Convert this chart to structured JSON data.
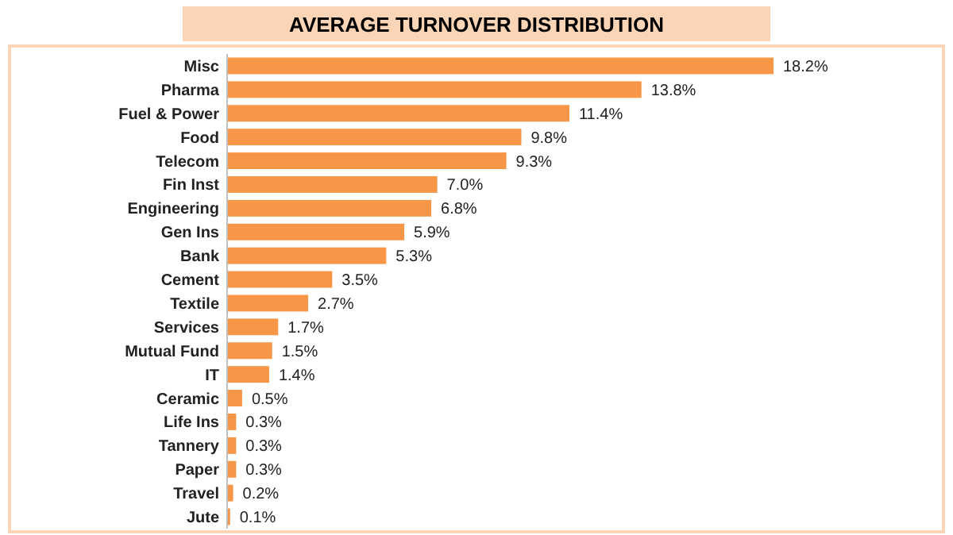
{
  "chart_data": {
    "type": "bar",
    "orientation": "horizontal",
    "title": "AVERAGE TURNOVER DISTRIBUTION",
    "categories": [
      "Misc",
      "Pharma",
      "Fuel & Power",
      "Food",
      "Telecom",
      "Fin Inst",
      "Engineering",
      "Gen Ins",
      "Bank",
      "Cement",
      "Textile",
      "Services",
      "Mutual Fund",
      "IT",
      "Ceramic",
      "Life Ins",
      "Tannery",
      "Paper",
      "Travel",
      "Jute"
    ],
    "values": [
      18.2,
      13.8,
      11.4,
      9.8,
      9.3,
      7.0,
      6.8,
      5.9,
      5.3,
      3.5,
      2.7,
      1.7,
      1.5,
      1.4,
      0.5,
      0.3,
      0.3,
      0.3,
      0.2,
      0.1
    ],
    "value_labels": [
      "18.2%",
      "13.8%",
      "11.4%",
      "9.8%",
      "9.3%",
      "7.0%",
      "6.8%",
      "5.9%",
      "5.3%",
      "3.5%",
      "2.7%",
      "1.7%",
      "1.5%",
      "1.4%",
      "0.5%",
      "0.3%",
      "0.3%",
      "0.3%",
      "0.2%",
      "0.1%"
    ],
    "color": "#f79646"
  }
}
